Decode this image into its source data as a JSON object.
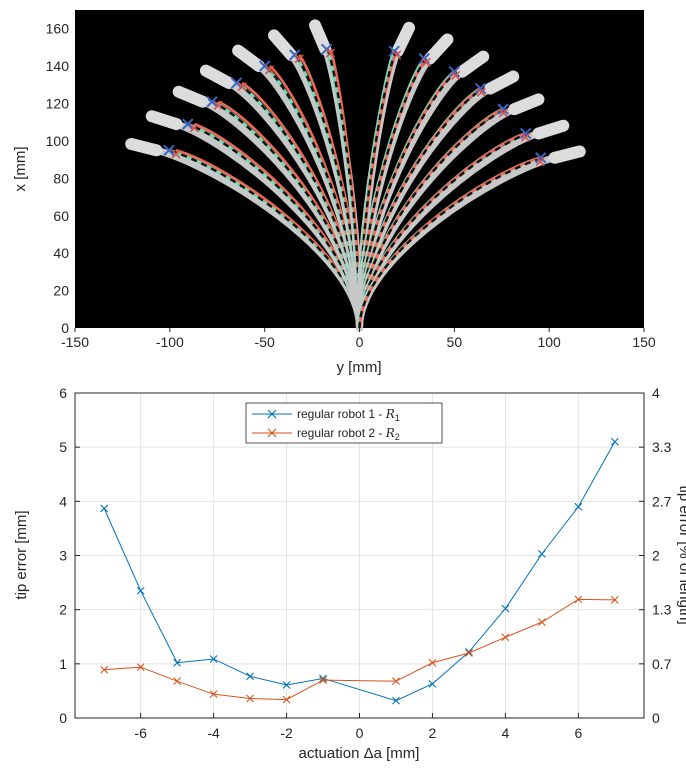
{
  "chart_data": [
    {
      "type": "line",
      "panel": "top",
      "background": "#000000",
      "xlabel": "y [mm]",
      "ylabel": "x [mm]",
      "xlim": [
        -150,
        150
      ],
      "ylim": [
        0,
        170
      ],
      "xticks": [
        -150,
        -100,
        -50,
        0,
        50,
        100,
        150
      ],
      "yticks": [
        0,
        20,
        40,
        60,
        80,
        100,
        120,
        140,
        160
      ],
      "grid": false,
      "colors": {
        "model_1": "#76d7b6",
        "model_2": "#ee6a55",
        "reference": "#111111",
        "backbone": "#c8c8c8",
        "marker_1": "#3a66c8",
        "marker_2": "#d9524a"
      },
      "tips": [
        {
          "y": -101,
          "x": 95
        },
        {
          "y": -91,
          "x": 109
        },
        {
          "y": -78,
          "x": 121
        },
        {
          "y": -65,
          "x": 131
        },
        {
          "y": -50,
          "x": 140
        },
        {
          "y": -34,
          "x": 146
        },
        {
          "y": -17,
          "x": 149
        },
        {
          "y": 19,
          "x": 148
        },
        {
          "y": 35,
          "x": 144
        },
        {
          "y": 51,
          "x": 137
        },
        {
          "y": 65,
          "x": 128
        },
        {
          "y": 77,
          "x": 117
        },
        {
          "y": 89,
          "x": 104
        },
        {
          "y": 97,
          "x": 91
        }
      ]
    },
    {
      "type": "line",
      "panel": "bottom",
      "xlabel": "actuation Δa [mm]",
      "ylabel": "tip error [mm]",
      "y2label": "tip error [% of length]",
      "xlim": [
        -7.8,
        7.8
      ],
      "ylim": [
        0,
        6
      ],
      "xticks": [
        -6,
        -4,
        -2,
        0,
        2,
        4,
        6
      ],
      "yticks": [
        0,
        1,
        2,
        3,
        4,
        5,
        6
      ],
      "y2ticks": [
        "0",
        "0.7",
        "1.3",
        "2",
        "2.7",
        "3.3",
        "4"
      ],
      "grid": true,
      "legend_position": "top-center",
      "x": [
        -7,
        -6,
        -5,
        -4,
        -3,
        -2,
        -1,
        1,
        2,
        3,
        4,
        5,
        6,
        7
      ],
      "series": [
        {
          "name": "regular robot 1 - ",
          "symbol": "R",
          "subscript": "1",
          "color": "#0072bd",
          "values": [
            3.87,
            2.35,
            1.02,
            1.09,
            0.77,
            0.61,
            0.73,
            0.32,
            0.63,
            1.22,
            2.02,
            3.03,
            3.9,
            5.1
          ]
        },
        {
          "name": "regular robot 2 - ",
          "symbol": "R",
          "subscript": "2",
          "color": "#d95319",
          "values": [
            0.89,
            0.94,
            0.68,
            0.44,
            0.36,
            0.34,
            0.7,
            0.68,
            1.02,
            1.2,
            1.49,
            1.77,
            2.19,
            2.18
          ]
        }
      ]
    }
  ]
}
